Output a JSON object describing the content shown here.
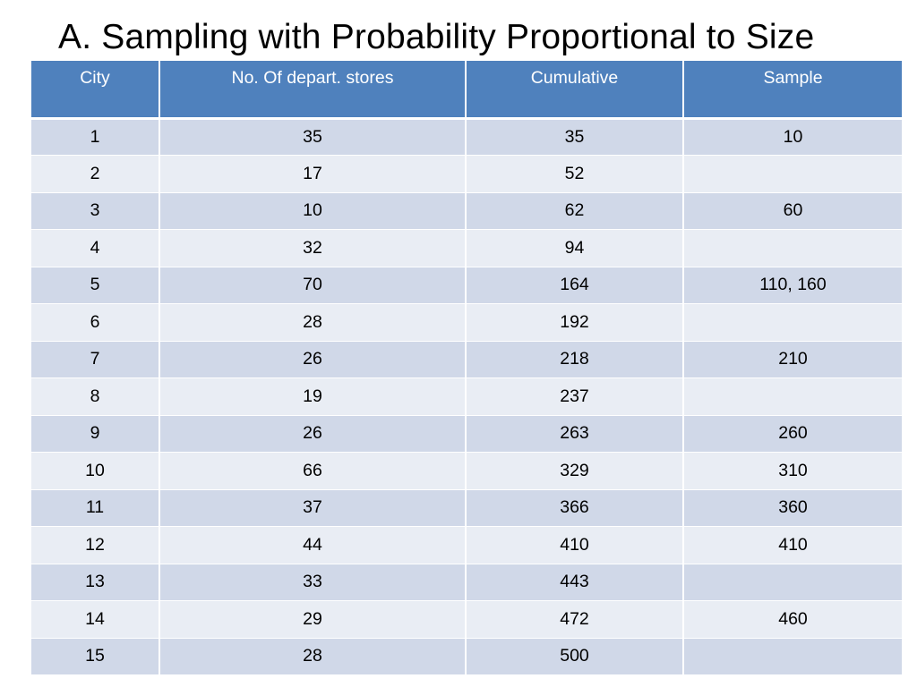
{
  "slide": {
    "title": "A. Sampling with Probability Proportional to Size"
  },
  "table": {
    "headers": [
      "City",
      "No. Of depart. stores",
      "Cumulative",
      "Sample"
    ],
    "rows": [
      [
        "1",
        "35",
        "35",
        "10"
      ],
      [
        "2",
        "17",
        "52",
        ""
      ],
      [
        "3",
        "10",
        "62",
        "60"
      ],
      [
        "4",
        "32",
        "94",
        ""
      ],
      [
        "5",
        "70",
        "164",
        "110, 160"
      ],
      [
        "6",
        "28",
        "192",
        ""
      ],
      [
        "7",
        "26",
        "218",
        "210"
      ],
      [
        "8",
        "19",
        "237",
        ""
      ],
      [
        "9",
        "26",
        "263",
        "260"
      ],
      [
        "10",
        "66",
        "329",
        "310"
      ],
      [
        "11",
        "37",
        "366",
        "360"
      ],
      [
        "12",
        "44",
        "410",
        "410"
      ],
      [
        "13",
        "33",
        "443",
        ""
      ],
      [
        "14",
        "29",
        "472",
        "460"
      ],
      [
        "15",
        "28",
        "500",
        ""
      ]
    ]
  },
  "colors": {
    "header_fill": "#4f81bd",
    "band_odd": "#d0d8e8",
    "band_even": "#e9edf4",
    "text": "#000000",
    "header_text": "#ffffff"
  }
}
